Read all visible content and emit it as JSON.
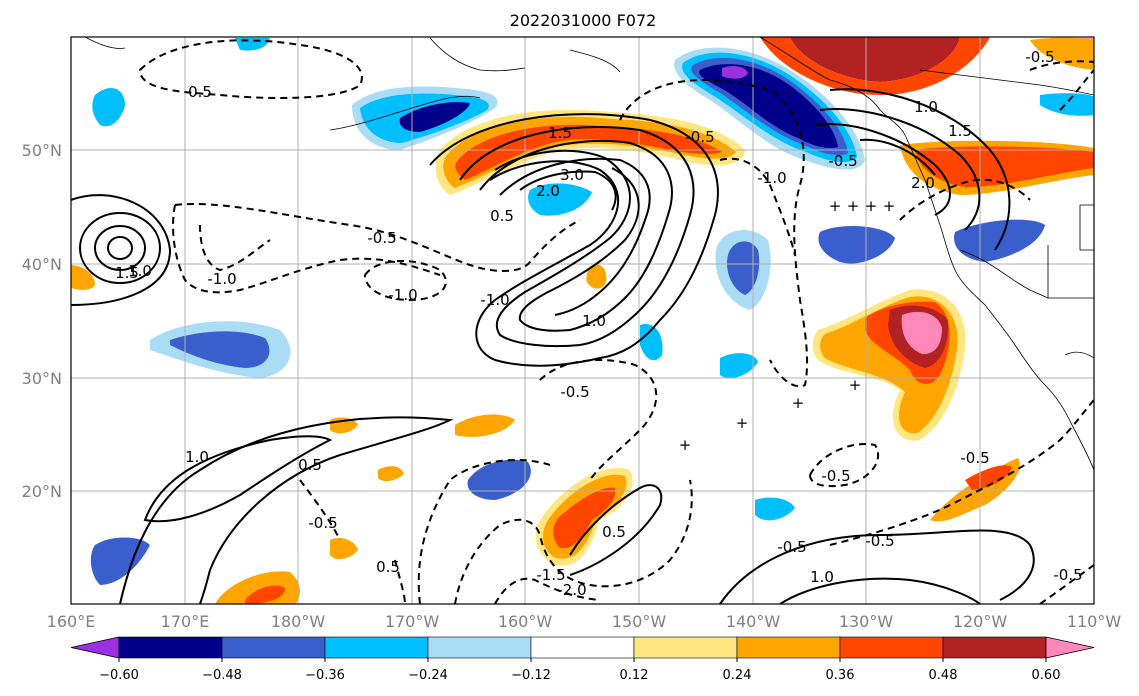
{
  "title": "2022031000 F072",
  "lat_labels": [
    "50°N",
    "40°N",
    "30°N",
    "20°N"
  ],
  "lon_labels": [
    "160°E",
    "170°E",
    "180°W",
    "170°W",
    "160°W",
    "150°W",
    "140°W",
    "130°W",
    "120°W",
    "110°W"
  ],
  "colorbar": {
    "ticks": [
      "−0.60",
      "−0.48",
      "−0.36",
      "−0.24",
      "−0.12",
      "0.12",
      "0.24",
      "0.36",
      "0.48",
      "0.60"
    ],
    "colors": [
      "#9b30e0",
      "#00008b",
      "#3a5fcd",
      "#00bfff",
      "#aadcf5",
      "#ffffff",
      "#ffe680",
      "#ffa500",
      "#ff4500",
      "#b22222",
      "#ff88bb"
    ]
  },
  "contour_labels": [
    "0.5",
    "1.5",
    "3.0",
    "2.0",
    "0.5",
    "1.0",
    "-0.5",
    "-1.0",
    "-0.5",
    "1.0",
    "1.5",
    "2.0",
    "-0.5",
    "-1.0",
    "1.5",
    "1.0",
    "-1.0",
    "-1.0",
    "-0.5",
    "-0.5",
    "1.0",
    "0.5",
    "-0.5",
    "0.5",
    "-1.5",
    "-2.0",
    "0.5",
    "-0.5",
    "1.0",
    "-0.5",
    "-0.5",
    "-0.5",
    "-0.5"
  ]
}
